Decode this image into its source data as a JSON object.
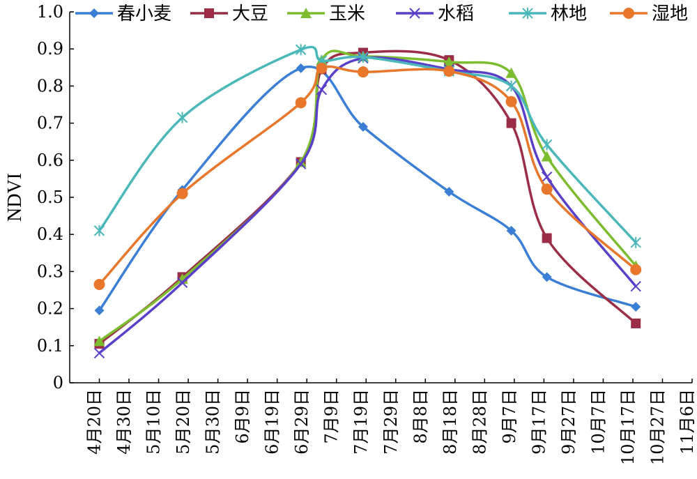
{
  "chart_data": {
    "type": "line",
    "ylabel": "NDVI",
    "ylim": [
      0,
      1.0
    ],
    "yticks": [
      "0",
      "0.1",
      "0.2",
      "0.3",
      "0.4",
      "0.5",
      "0.6",
      "0.7",
      "0.8",
      "0.9",
      "1.0"
    ],
    "xticks": [
      "4月20日",
      "4月30日",
      "5月10日",
      "5月20日",
      "5月30日",
      "6月9日",
      "6月19日",
      "6月29日",
      "7月9日",
      "7月19日",
      "7月29日",
      "8月8日",
      "8月18日",
      "8月28日",
      "9月7日",
      "9月17日",
      "9月27日",
      "10月7日",
      "10月17日",
      "10月27日",
      "11月6日"
    ],
    "legend_position": "top",
    "series": [
      {
        "name": "春小麦",
        "color": "#3a7ed5",
        "marker": "diamond",
        "points": [
          [
            "4月30日",
            0.195
          ],
          [
            "5月28日",
            0.52
          ],
          [
            "7月7日",
            0.848
          ],
          [
            "7月28日",
            0.69
          ],
          [
            "8月26日",
            0.515
          ],
          [
            "9月16日",
            0.41
          ],
          [
            "9月28日",
            0.285
          ],
          [
            "10月28日",
            0.205
          ]
        ]
      },
      {
        "name": "大豆",
        "color": "#9b2d47",
        "marker": "square",
        "points": [
          [
            "4月30日",
            0.105
          ],
          [
            "5月28日",
            0.285
          ],
          [
            "7月7日",
            0.595
          ],
          [
            "7月14日",
            0.845
          ],
          [
            "7月28日",
            0.89
          ],
          [
            "8月26日",
            0.87
          ],
          [
            "9月16日",
            0.7
          ],
          [
            "9月28日",
            0.39
          ],
          [
            "10月28日",
            0.16
          ]
        ]
      },
      {
        "name": "玉米",
        "color": "#7cbd2f",
        "marker": "triangle",
        "points": [
          [
            "4月30日",
            0.112
          ],
          [
            "5月28日",
            0.28
          ],
          [
            "7月7日",
            0.595
          ],
          [
            "7月14日",
            0.87
          ],
          [
            "7月28日",
            0.88
          ],
          [
            "8月26日",
            0.865
          ],
          [
            "9月16日",
            0.835
          ],
          [
            "9月28日",
            0.61
          ],
          [
            "10月28日",
            0.315
          ]
        ]
      },
      {
        "name": "水稻",
        "color": "#5a3fc8",
        "marker": "x",
        "points": [
          [
            "4月30日",
            0.08
          ],
          [
            "5月28日",
            0.27
          ],
          [
            "7月7日",
            0.59
          ],
          [
            "7月14日",
            0.79
          ],
          [
            "7月28日",
            0.875
          ],
          [
            "8月26日",
            0.845
          ],
          [
            "9月16日",
            0.8
          ],
          [
            "9月28日",
            0.555
          ],
          [
            "10月28日",
            0.26
          ]
        ]
      },
      {
        "name": "林地",
        "color": "#4ab7ba",
        "marker": "asterisk",
        "points": [
          [
            "4月30日",
            0.41
          ],
          [
            "5月28日",
            0.715
          ],
          [
            "7月7日",
            0.898
          ],
          [
            "7月14日",
            0.868
          ],
          [
            "7月28日",
            0.878
          ],
          [
            "8月26日",
            0.84
          ],
          [
            "9月16日",
            0.8
          ],
          [
            "9月28日",
            0.642
          ],
          [
            "10月28日",
            0.378
          ]
        ]
      },
      {
        "name": "湿地",
        "color": "#e8762b",
        "marker": "circle",
        "points": [
          [
            "4月30日",
            0.265
          ],
          [
            "5月28日",
            0.51
          ],
          [
            "7月7日",
            0.755
          ],
          [
            "7月14日",
            0.848
          ],
          [
            "7月28日",
            0.838
          ],
          [
            "8月26日",
            0.84
          ],
          [
            "9月16日",
            0.758
          ],
          [
            "9月28日",
            0.522
          ],
          [
            "10月28日",
            0.305
          ]
        ]
      }
    ]
  }
}
